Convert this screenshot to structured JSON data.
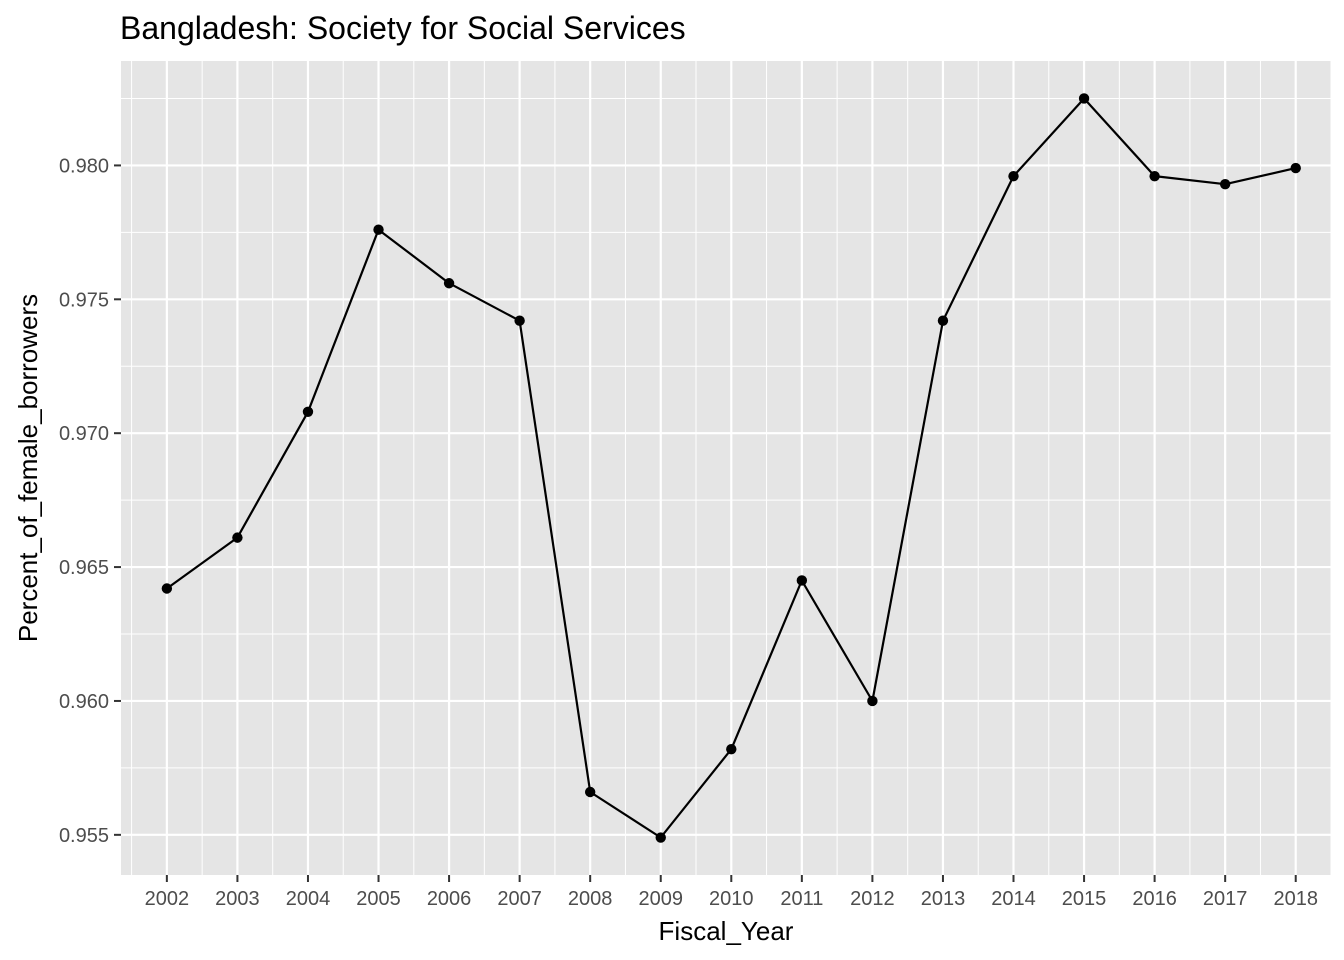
{
  "chart_data": {
    "type": "line",
    "title": "Bangladesh:  Society for Social Services",
    "xlabel": "Fiscal_Year",
    "ylabel": "Percent_of_female_borrowers",
    "x": [
      2002,
      2003,
      2004,
      2005,
      2006,
      2007,
      2008,
      2009,
      2010,
      2011,
      2012,
      2013,
      2014,
      2015,
      2016,
      2017,
      2018
    ],
    "y": [
      0.9642,
      0.9661,
      0.9708,
      0.9776,
      0.9756,
      0.9742,
      0.9566,
      0.9549,
      0.9582,
      0.9645,
      0.96,
      0.9742,
      0.9796,
      0.9825,
      0.9796,
      0.9793,
      0.9799
    ],
    "x_ticks": [
      "2002",
      "2003",
      "2004",
      "2005",
      "2006",
      "2007",
      "2008",
      "2009",
      "2010",
      "2011",
      "2012",
      "2013",
      "2014",
      "2015",
      "2016",
      "2017",
      "2018"
    ],
    "y_ticks": [
      0.955,
      0.96,
      0.965,
      0.97,
      0.975,
      0.98
    ],
    "y_tick_labels": [
      "0.955",
      "0.960",
      "0.965",
      "0.970",
      "0.975",
      "0.980"
    ],
    "xlim": [
      2001.35,
      2018.5
    ],
    "ylim": [
      0.9535,
      0.9839
    ],
    "grid": true,
    "colors": {
      "panel": "#e5e5e5",
      "grid": "#ffffff",
      "line": "#000000",
      "tick_text": "#4d4d4d"
    }
  }
}
